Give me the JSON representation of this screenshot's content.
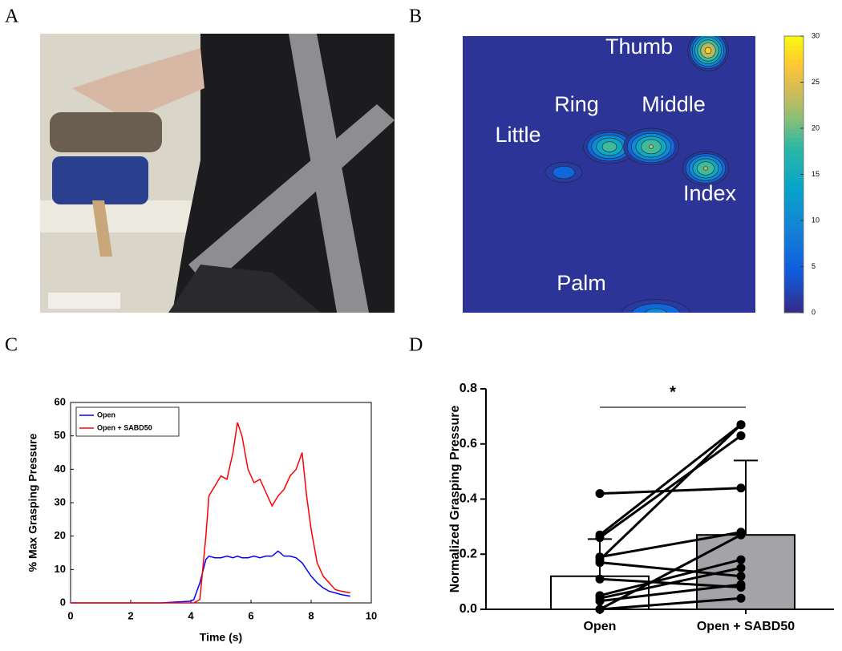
{
  "panel_labels": [
    "A",
    "B",
    "C",
    "D"
  ],
  "chart_data": [
    {
      "type": "heatmap",
      "regions": [
        {
          "name": "Thumb",
          "value": 28
        },
        {
          "name": "Ring",
          "value": 21
        },
        {
          "name": "Middle",
          "value": 23
        },
        {
          "name": "Little",
          "value": 9
        },
        {
          "name": "Index",
          "value": 23
        },
        {
          "name": "Palm",
          "value": 12
        }
      ],
      "clim": [
        0,
        30
      ],
      "cticks": [
        0,
        5,
        10,
        15,
        20,
        25,
        30
      ]
    },
    {
      "type": "line",
      "xlabel": "Time (s)",
      "ylabel": "% Max Grasping Pressure",
      "x": [
        0,
        1,
        2,
        3,
        4,
        4.1,
        4.3,
        4.5,
        4.6,
        4.8,
        5.0,
        5.2,
        5.4,
        5.55,
        5.7,
        5.9,
        6.1,
        6.3,
        6.5,
        6.7,
        6.9,
        7.1,
        7.3,
        7.5,
        7.7,
        7.85,
        8.0,
        8.2,
        8.4,
        8.6,
        8.8,
        9.0,
        9.3
      ],
      "series": [
        {
          "name": "Open",
          "color": "#0000ff",
          "values": [
            0,
            0,
            0,
            0,
            0.5,
            1,
            6,
            13,
            14,
            13.5,
            13.5,
            14,
            13.5,
            14,
            13.5,
            13.5,
            14,
            13.5,
            14,
            14,
            15.5,
            14,
            14,
            13.5,
            12,
            10,
            8,
            6,
            4.5,
            3.5,
            3,
            2.5,
            2
          ]
        },
        {
          "name": "Open + SABD50",
          "color": "#ff0000",
          "values": [
            0,
            0,
            0,
            0,
            0,
            0,
            1,
            20,
            32,
            35,
            38,
            37,
            45,
            54,
            50,
            40,
            36,
            37,
            33,
            29,
            32,
            34,
            38,
            40,
            45,
            32,
            22,
            12,
            8,
            6,
            4,
            3.5,
            3
          ]
        }
      ],
      "xlim": [
        0,
        10
      ],
      "xticks": [
        0,
        2,
        4,
        6,
        8,
        10
      ],
      "ylim": [
        0,
        60
      ],
      "yticks": [
        0,
        10,
        20,
        30,
        40,
        50,
        60
      ],
      "legend": "upper-left"
    },
    {
      "type": "bar",
      "ylabel": "Normalized Grasping Pressure",
      "categories": [
        "Open",
        "Open + SABD50"
      ],
      "values": [
        0.12,
        0.27
      ],
      "errors": [
        0.135,
        0.27
      ],
      "colors": [
        "#ffffff",
        "#a3a3a8"
      ],
      "pairs": [
        [
          0.42,
          0.44
        ],
        [
          0.27,
          0.67
        ],
        [
          0.26,
          0.63
        ],
        [
          0.19,
          0.28
        ],
        [
          0.18,
          0.67
        ],
        [
          0.17,
          0.12
        ],
        [
          0.11,
          0.08
        ],
        [
          0.05,
          0.18
        ],
        [
          0.04,
          0.15
        ],
        [
          0.03,
          0.09
        ],
        [
          0.0,
          0.04
        ],
        [
          0.0,
          0.27
        ]
      ],
      "annotation": "*",
      "ylim": [
        0,
        0.8
      ],
      "yticks": [
        {
          "value": 0,
          "label": "0.0"
        },
        0.2,
        0.4,
        0.6,
        0.8
      ]
    }
  ]
}
